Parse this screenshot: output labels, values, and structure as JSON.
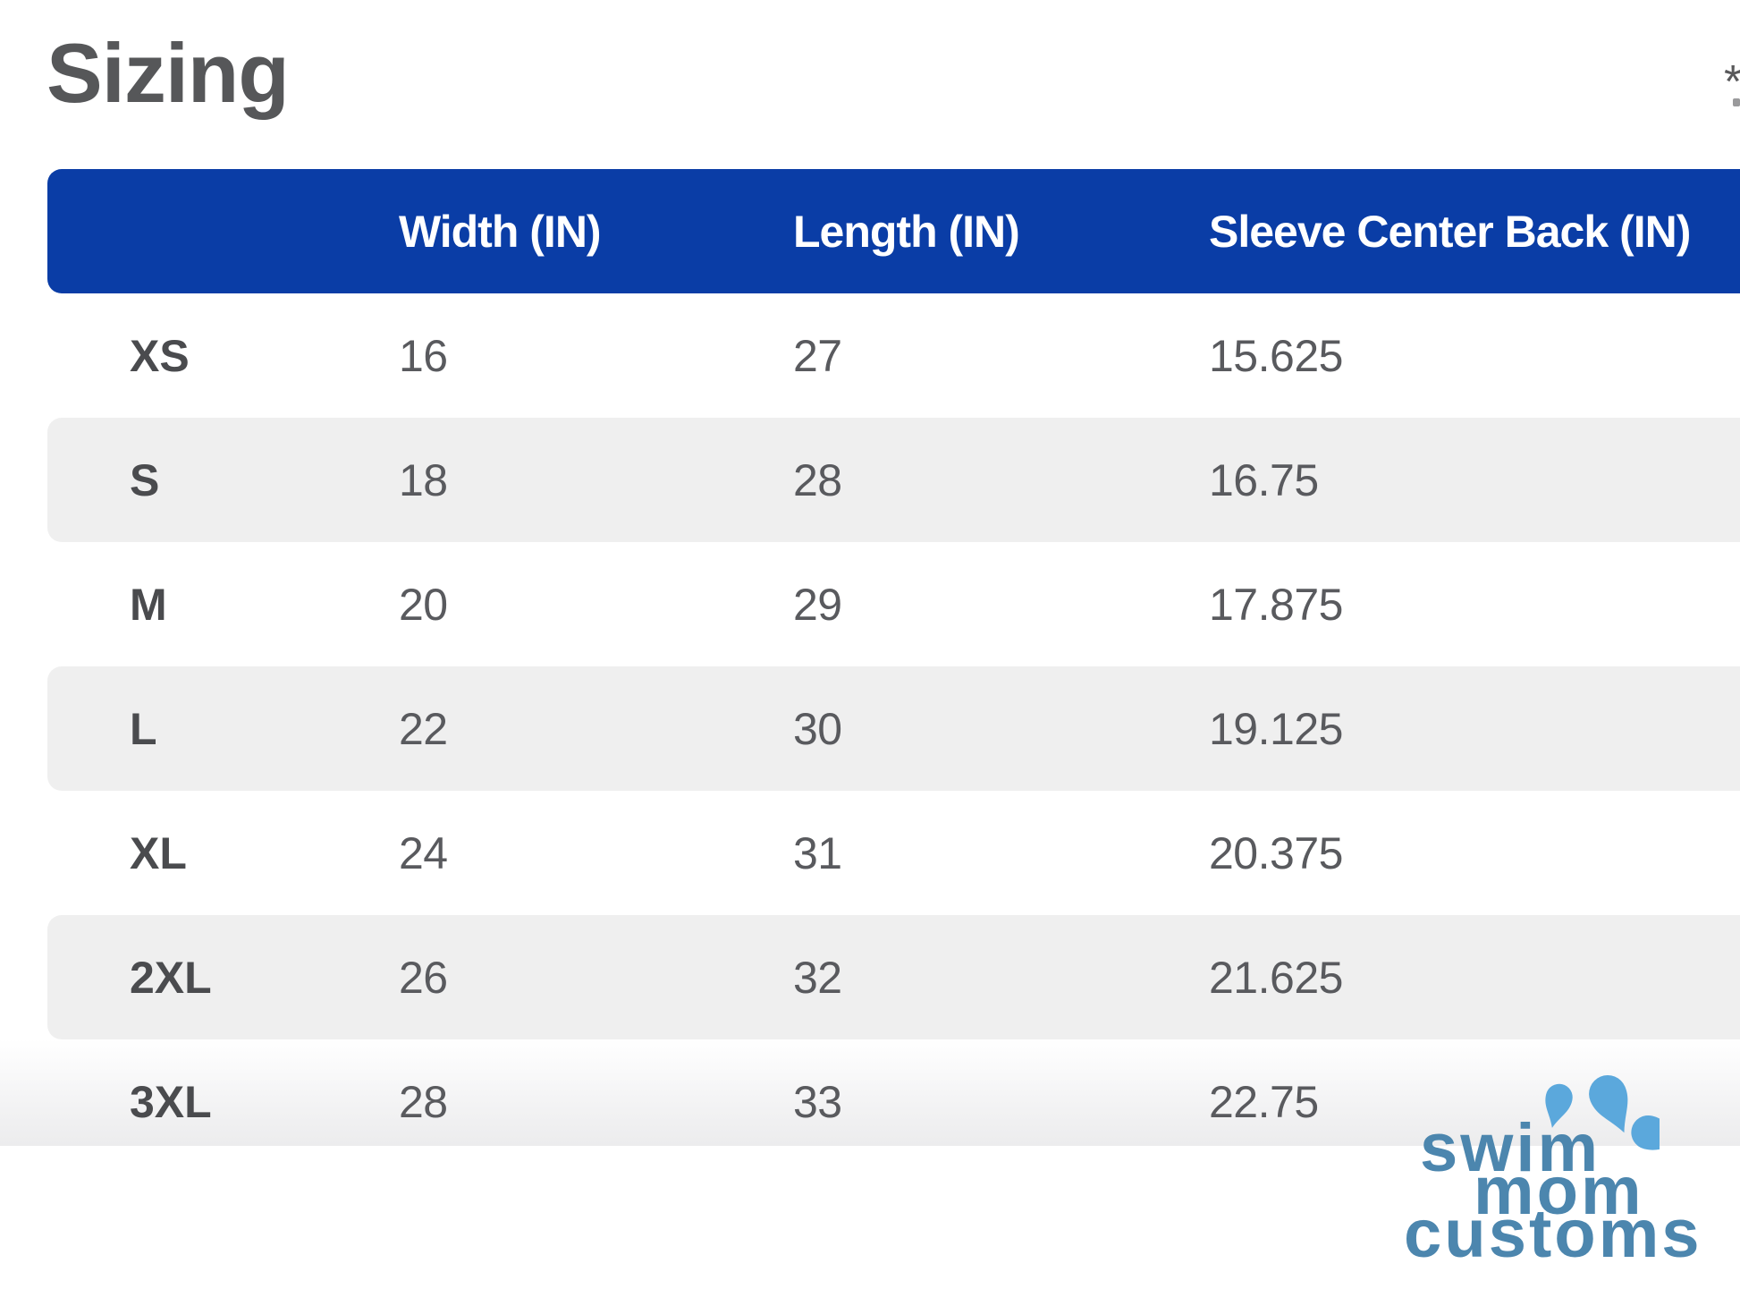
{
  "page": {
    "title": "Sizing",
    "footnote_marker": "*"
  },
  "table": {
    "columns": [
      {
        "label": ""
      },
      {
        "label": "Width (IN)"
      },
      {
        "label": "Length (IN)"
      },
      {
        "label": "Sleeve Center Back (IN)"
      }
    ],
    "rows": [
      {
        "size": "XS",
        "width": "16",
        "length": "27",
        "sleeve": "15.625"
      },
      {
        "size": "S",
        "width": "18",
        "length": "28",
        "sleeve": "16.75"
      },
      {
        "size": "M",
        "width": "20",
        "length": "29",
        "sleeve": "17.875"
      },
      {
        "size": "L",
        "width": "22",
        "length": "30",
        "sleeve": "19.125"
      },
      {
        "size": "XL",
        "width": "24",
        "length": "31",
        "sleeve": "20.375"
      },
      {
        "size": "2XL",
        "width": "26",
        "length": "32",
        "sleeve": "21.625"
      },
      {
        "size": "3XL",
        "width": "28",
        "length": "33",
        "sleeve": "22.75"
      }
    ]
  },
  "logo": {
    "line1": "swim",
    "line2": "mom",
    "line3": "customs",
    "icon": "water-splash-icon",
    "text_color": "#4C86AE",
    "splash_color": "#5BA8DC"
  },
  "colors": {
    "header_background": "#0A3DA6",
    "header_text": "#FFFFFF",
    "shaded_row": "#EFEFEF",
    "title_text": "#565759",
    "cell_text": "#595A5E"
  }
}
